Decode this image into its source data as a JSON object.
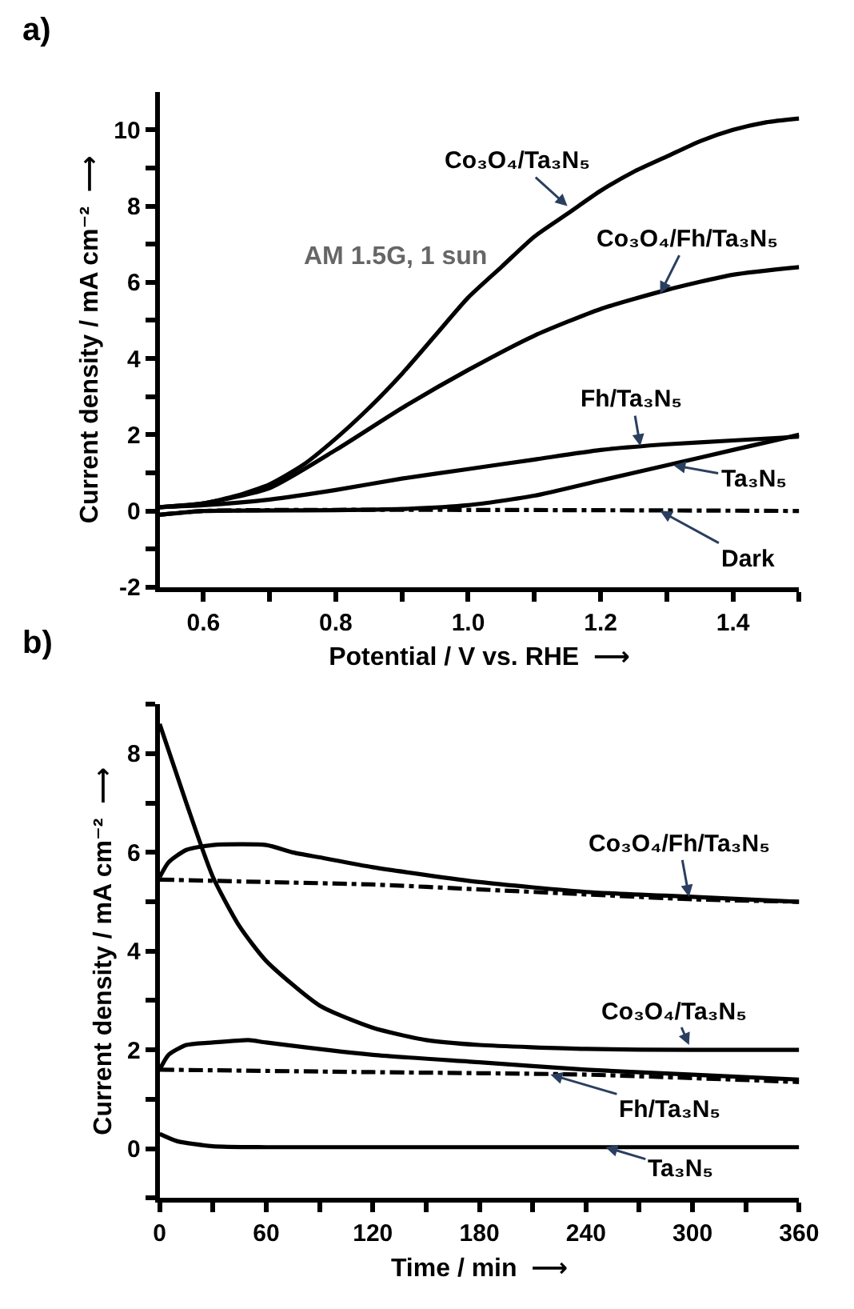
{
  "chart_data": [
    {
      "type": "line",
      "title": "a)",
      "xlabel": "Potential / V vs. RHE  ⟶",
      "ylabel": "Current density / mA cm⁻²  ⟶",
      "xlim": [
        0.534,
        1.5
      ],
      "ylim": [
        -2,
        11
      ],
      "xticks": [
        0.6,
        {
          "value": 0.7,
          "label": null
        },
        0.8,
        {
          "value": 0.9,
          "label": null
        },
        "1.0",
        1.2,
        1.4,
        {
          "value": 1.1,
          "label": null
        },
        {
          "value": 1.3,
          "label": null
        },
        {
          "value": 1.5,
          "label": null
        }
      ],
      "yticks": [
        -2,
        {
          "value": -1,
          "label": null
        },
        0,
        {
          "value": 1,
          "label": null
        },
        2,
        {
          "value": 3,
          "label": null
        },
        4,
        {
          "value": 5,
          "label": null
        },
        6,
        {
          "value": 7,
          "label": null
        },
        8,
        {
          "value": 9,
          "label": null
        },
        10
      ],
      "marker": "none",
      "series": [
        {
          "color": "#000000",
          "line_style": "solid",
          "x": [
            0.534,
            0.6,
            0.65,
            0.7,
            0.75,
            0.8,
            0.85,
            0.9,
            0.95,
            1.0,
            1.05,
            1.1,
            1.15,
            1.2,
            1.25,
            1.3,
            1.35,
            1.4,
            1.45,
            1.5
          ],
          "values": [
            0.1,
            0.2,
            0.4,
            0.7,
            1.2,
            1.9,
            2.7,
            3.6,
            4.6,
            5.6,
            6.4,
            7.2,
            7.8,
            8.4,
            8.9,
            9.3,
            9.7,
            10.0,
            10.2,
            10.3
          ]
        },
        {
          "color": "#000000",
          "line_style": "solid",
          "x": [
            0.534,
            0.6,
            0.7,
            0.8,
            0.9,
            1.0,
            1.1,
            1.2,
            1.3,
            1.4,
            1.5
          ],
          "values": [
            0.1,
            0.2,
            0.6,
            1.6,
            2.7,
            3.7,
            4.6,
            5.3,
            5.8,
            6.2,
            6.4
          ]
        },
        {
          "color": "#000000",
          "line_style": "solid",
          "x": [
            0.534,
            0.6,
            0.7,
            0.8,
            0.9,
            1.0,
            1.1,
            1.2,
            1.3,
            1.4,
            1.5
          ],
          "values": [
            0.1,
            0.15,
            0.3,
            0.55,
            0.85,
            1.1,
            1.35,
            1.6,
            1.75,
            1.85,
            1.95
          ]
        },
        {
          "color": "#000000",
          "line_style": "solid",
          "x": [
            0.534,
            0.6,
            0.8,
            0.9,
            1.0,
            1.1,
            1.2,
            1.3,
            1.4,
            1.5
          ],
          "values": [
            -0.1,
            0,
            0.02,
            0.05,
            0.15,
            0.4,
            0.8,
            1.2,
            1.6,
            2.0
          ]
        },
        {
          "color": "#000000",
          "line_style": "dashdot",
          "x": [
            0.534,
            0.6,
            1.5
          ],
          "values": [
            -0.1,
            0,
            0
          ]
        }
      ],
      "annotations": [
        {
          "text": "Co₃O₄/Ta₃N₅",
          "x": 1.15,
          "y": 8.0
        },
        {
          "text": "Co₃O₄/Fh/Ta₃N₅",
          "x": 1.29,
          "y": 5.7
        },
        {
          "text": "Fh/Ta₃N₅",
          "x": 1.26,
          "y": 1.7
        },
        {
          "text": "Ta₃N₅",
          "x": 1.31,
          "y": 1.2
        },
        {
          "text": "Dark",
          "x": 1.29,
          "y": 0
        },
        "AM 1.5G, 1 sun"
      ]
    },
    {
      "type": "line",
      "title": "b)",
      "xlabel": "Time / min  ⟶",
      "ylabel": "Current density / mA cm⁻²  ⟶",
      "xlim": [
        0,
        360
      ],
      "ylim": [
        -1,
        9
      ],
      "xticks": [
        0,
        {
          "value": 30,
          "label": null
        },
        60,
        {
          "value": 90,
          "label": null
        },
        120,
        {
          "value": 150,
          "label": null
        },
        180,
        {
          "value": 210,
          "label": null
        },
        240,
        {
          "value": 270,
          "label": null
        },
        300,
        {
          "value": 330,
          "label": null
        },
        360
      ],
      "yticks": [
        {
          "value": -1,
          "label": null
        },
        0,
        {
          "value": 1,
          "label": null
        },
        2,
        {
          "value": 3,
          "label": null
        },
        4,
        {
          "value": 5,
          "label": null
        },
        6,
        {
          "value": 7,
          "label": null
        },
        8,
        {
          "value": 9,
          "label": null
        }
      ],
      "marker": "none",
      "series": [
        {
          "color": "#000000",
          "line_style": "solid",
          "x": [
            0,
            15,
            30,
            45,
            60,
            90,
            120,
            150,
            180,
            240,
            300,
            360
          ],
          "values": [
            8.6,
            7.0,
            5.5,
            4.5,
            3.8,
            2.9,
            2.45,
            2.2,
            2.1,
            2.02,
            2.0,
            2.0
          ]
        },
        {
          "color": "#000000",
          "line_style": "solid",
          "x": [
            0,
            5,
            15,
            30,
            60,
            75,
            90,
            120,
            180,
            240,
            300,
            360
          ],
          "values": [
            5.5,
            5.8,
            6.05,
            6.15,
            6.15,
            6.0,
            5.9,
            5.7,
            5.4,
            5.2,
            5.1,
            5.0
          ]
        },
        {
          "color": "#000000",
          "line_style": "dashdot",
          "x": [
            0,
            60,
            120,
            180,
            240,
            300,
            360
          ],
          "values": [
            5.45,
            5.4,
            5.35,
            5.25,
            5.15,
            5.05,
            5.0
          ]
        },
        {
          "color": "#000000",
          "line_style": "solid",
          "x": [
            0,
            5,
            15,
            30,
            50,
            60,
            120,
            180,
            240,
            300,
            360
          ],
          "values": [
            1.6,
            1.9,
            2.1,
            2.15,
            2.2,
            2.15,
            1.9,
            1.75,
            1.6,
            1.5,
            1.4
          ]
        },
        {
          "color": "#000000",
          "line_style": "dashdot",
          "x": [
            0,
            120,
            240,
            360
          ],
          "values": [
            1.6,
            1.55,
            1.5,
            1.35
          ]
        },
        {
          "color": "#000000",
          "line_style": "solid",
          "x": [
            0,
            10,
            30,
            60,
            360
          ],
          "values": [
            0.3,
            0.15,
            0.05,
            0.03,
            0.03
          ]
        }
      ],
      "annotations": [
        {
          "text": "Co₃O₄/Fh/Ta₃N₅",
          "x": 298,
          "y": 5.1
        },
        {
          "text": "Co₃O₄/Ta₃N₅",
          "x": 298,
          "y": 2.1
        },
        {
          "text": "Fh/Ta₃N₅",
          "x": 220,
          "y": 1.5
        },
        {
          "text": "Ta₃N₅",
          "x": 251,
          "y": 0.03
        }
      ]
    }
  ]
}
